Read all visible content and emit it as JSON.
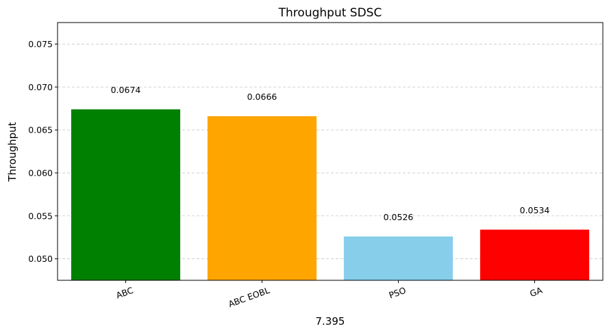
{
  "chart_data": {
    "type": "bar",
    "title": "Throughput SDSC",
    "xlabel": "7.395",
    "ylabel": "Throughput",
    "categories": [
      "ABC",
      "ABC EOBL",
      "PSO",
      "GA"
    ],
    "values": [
      0.0674,
      0.0666,
      0.0526,
      0.0534
    ],
    "data_labels": [
      "0.0674",
      "0.0666",
      "0.0526",
      "0.0534"
    ],
    "colors": [
      "#008000",
      "#FFA500",
      "#87CEEB",
      "#FF0000"
    ],
    "ylim": [
      0.0475,
      0.0775
    ],
    "yticks": [
      0.05,
      0.055,
      0.06,
      0.065,
      0.07,
      0.075
    ],
    "ytick_labels": [
      "0.050",
      "0.055",
      "0.060",
      "0.065",
      "0.070",
      "0.075"
    ],
    "xtick_rotation": 20,
    "grid": "y-dashed",
    "grid_color": "#c8c8c8"
  }
}
